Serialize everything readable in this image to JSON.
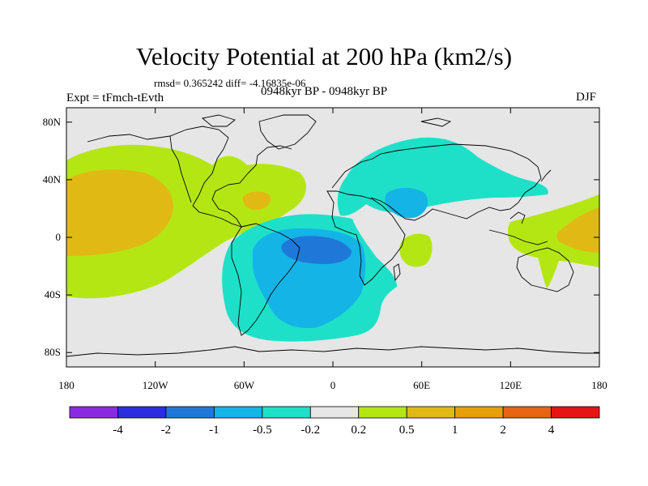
{
  "title": "Velocity Potential at 200 hPa (km2/s)",
  "stats": "rmsd= 0.365242 diff= -4.16835e-06",
  "experiment": "Expt = tFmch-tEvth",
  "period": "0948kyr BP - 0948kyr BP",
  "season": "DJF",
  "lat_ticks": [
    {
      "label": "80N",
      "lat": 80
    },
    {
      "label": "40N",
      "lat": 40
    },
    {
      "label": "0",
      "lat": 0
    },
    {
      "label": "40S",
      "lat": -40
    },
    {
      "label": "80S",
      "lat": -80
    }
  ],
  "lon_ticks": [
    {
      "label": "180",
      "lon": -180
    },
    {
      "label": "120W",
      "lon": -120
    },
    {
      "label": "60W",
      "lon": -60
    },
    {
      "label": "0",
      "lon": 0
    },
    {
      "label": "60E",
      "lon": 60
    },
    {
      "label": "120E",
      "lon": 120
    },
    {
      "label": "180",
      "lon": 180
    }
  ],
  "colorbar": {
    "colors": [
      "#8a2be2",
      "#2d2de0",
      "#1f78d8",
      "#14b4e6",
      "#1ee0c8",
      "#e6e6e6",
      "#b4e614",
      "#e1b914",
      "#e6a00a",
      "#e66414",
      "#e61414"
    ],
    "labels": [
      "-4",
      "-2",
      "-1",
      "-0.5",
      "-0.2",
      "0.2",
      "0.5",
      "1",
      "2",
      "4"
    ]
  },
  "colors": {
    "background": "#e6e6e6",
    "green": "#b4e614",
    "orange": "#e1b914",
    "cyan": "#1ee0c8",
    "lightblue": "#14b4e6",
    "blue": "#1f78d8"
  }
}
